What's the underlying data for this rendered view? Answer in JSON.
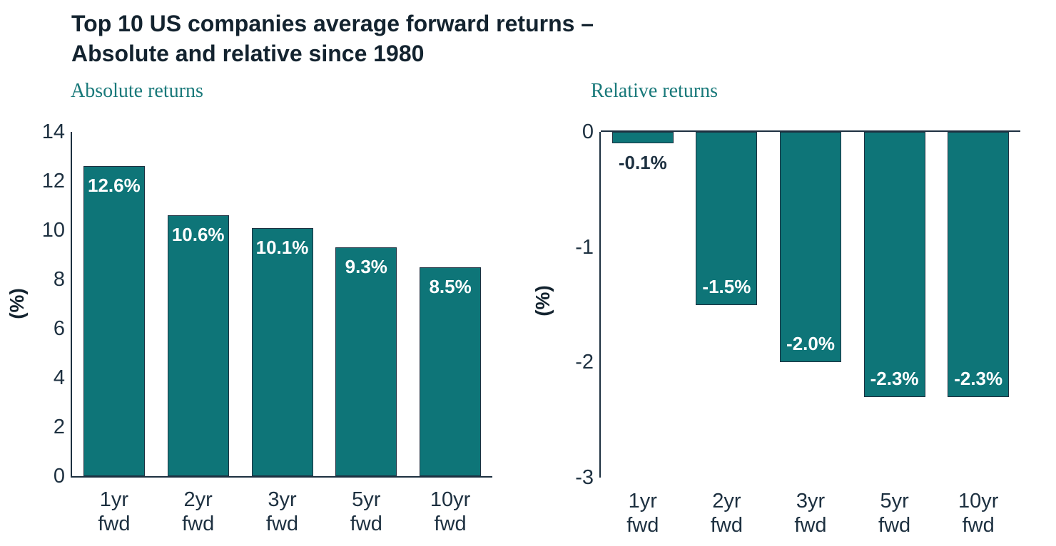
{
  "title": {
    "line1": "Top 10 US companies average forward returns –",
    "line2": "Absolute and relative since 1980"
  },
  "colors": {
    "bar_fill": "#0E7578",
    "bar_border": "#1D3040",
    "axis_text": "#1D3040",
    "title_text": "#13232F",
    "subtitle_text": "#19797A",
    "bar_label_inside": "#FFFFFF"
  },
  "chart_data": [
    {
      "type": "bar",
      "title": "Absolute returns",
      "ylabel": "(%)",
      "xlabel": "",
      "categories": [
        "1yr fwd",
        "2yr fwd",
        "3yr fwd",
        "5yr fwd",
        "10yr fwd"
      ],
      "values": [
        12.6,
        10.6,
        10.1,
        9.3,
        8.5
      ],
      "labels": [
        "12.6%",
        "10.6%",
        "10.1%",
        "9.3%",
        "8.5%"
      ],
      "yticks": [
        0,
        2,
        4,
        6,
        8,
        10,
        12,
        14
      ],
      "ylim": [
        0,
        14
      ],
      "grid": false,
      "legend": false
    },
    {
      "type": "bar",
      "title": "Relative returns",
      "ylabel": "(%)",
      "xlabel": "",
      "categories": [
        "1yr fwd",
        "2yr fwd",
        "3yr fwd",
        "5yr fwd",
        "10yr fwd"
      ],
      "values": [
        -0.1,
        -1.5,
        -2.0,
        -2.3,
        -2.3
      ],
      "labels": [
        "-0.1%",
        "-1.5%",
        "-2.0%",
        "-2.3%",
        "-2.3%"
      ],
      "yticks": [
        0,
        -1,
        -2,
        -3
      ],
      "ylim": [
        -3,
        0
      ],
      "grid": false,
      "legend": false
    }
  ]
}
